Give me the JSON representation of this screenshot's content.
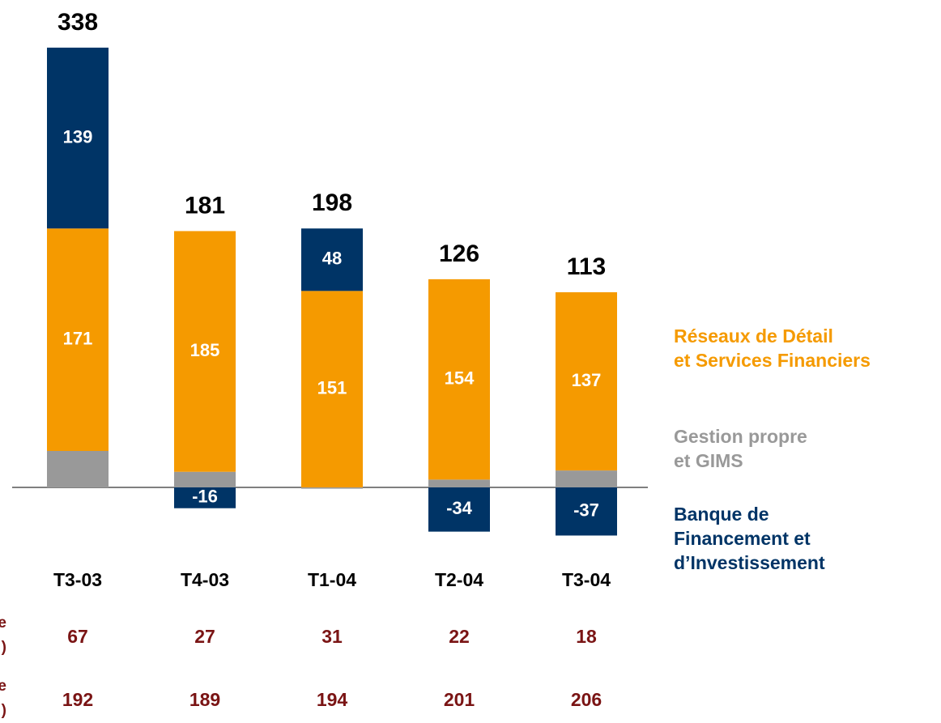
{
  "chart_data": {
    "type": "bar",
    "stacked": true,
    "categories": [
      "T3-03",
      "T4-03",
      "T1-04",
      "T2-04",
      "T3-04"
    ],
    "series": [
      {
        "name": "Gestion propre\net GIMS",
        "color": "#999999",
        "values": [
          28,
          12,
          -1,
          6,
          13
        ]
      },
      {
        "name": "Réseaux de Détail\net Services Financiers",
        "color": "#f59a00",
        "values": [
          171,
          185,
          151,
          154,
          137
        ]
      },
      {
        "name": "Banque de\nFinancement et\nd’Investissement",
        "color": "#003466",
        "values": [
          139,
          -16,
          48,
          -34,
          -37
        ]
      }
    ],
    "labeled_series": [
      1,
      2
    ],
    "totals": [
      338,
      181,
      198,
      126,
      113
    ],
    "rows": [
      {
        "label": [
          "e",
          ")"
        ],
        "values": [
          67,
          27,
          31,
          22,
          18
        ]
      },
      {
        "label": [
          "e",
          ")"
        ],
        "values": [
          192,
          189,
          194,
          201,
          206
        ]
      }
    ]
  }
}
